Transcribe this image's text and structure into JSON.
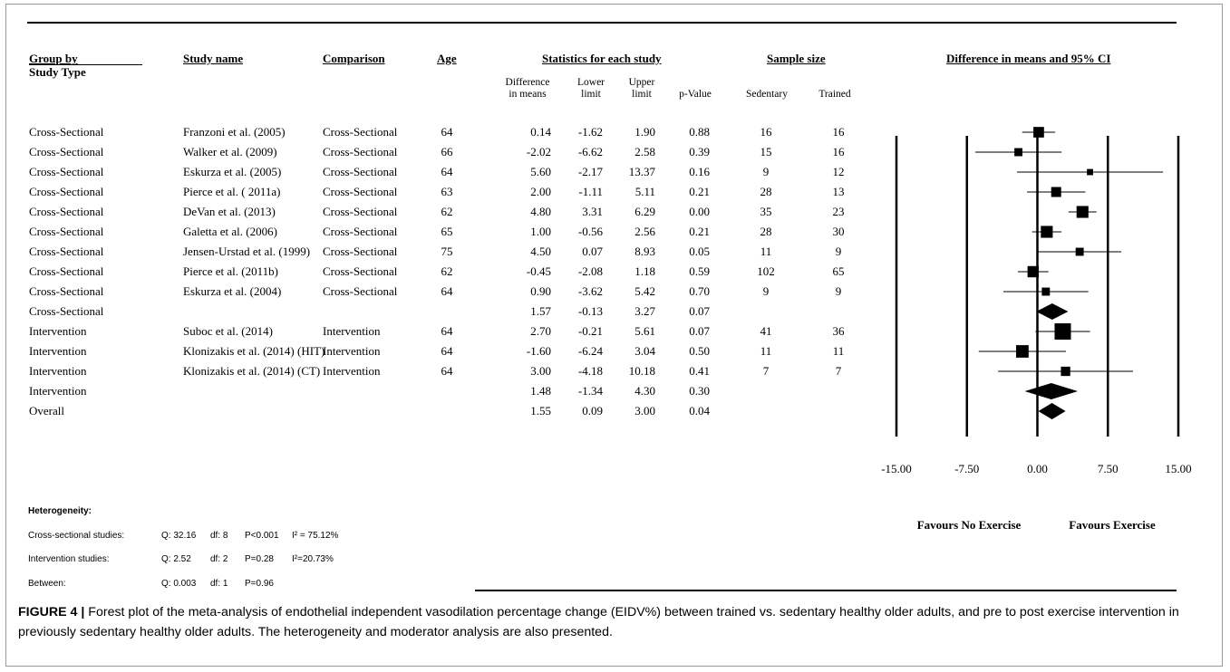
{
  "table": {
    "headers": {
      "group": "Group by",
      "group_sub": "Study Type",
      "study": "Study name",
      "comparison": "Comparison",
      "age": "Age",
      "stats": "Statistics for each study",
      "sample": "Sample size",
      "plot": "Difference in means and 95% CI"
    },
    "subheaders": {
      "diff": "Difference\nin means",
      "lower": "Lower\nlimit",
      "upper": "Upper\nlimit",
      "p": "p-Value",
      "sed": "Sedentary",
      "trained": "Trained"
    },
    "rows": [
      {
        "group": "Cross-Sectional",
        "study": "Franzoni et al. (2005)",
        "comparison": "Cross-Sectional",
        "age": "64",
        "diff": "0.14",
        "lower": "-1.62",
        "upper": "1.90",
        "p": "0.88",
        "sed": "16",
        "trained": "16"
      },
      {
        "group": "Cross-Sectional",
        "study": "Walker et al. (2009)",
        "comparison": "Cross-Sectional",
        "age": "66",
        "diff": "-2.02",
        "lower": "-6.62",
        "upper": "2.58",
        "p": "0.39",
        "sed": "15",
        "trained": "16"
      },
      {
        "group": "Cross-Sectional",
        "study": "Eskurza et al. (2005)",
        "comparison": "Cross-Sectional",
        "age": "64",
        "diff": "5.60",
        "lower": "-2.17",
        "upper": "13.37",
        "p": "0.16",
        "sed": "9",
        "trained": "12"
      },
      {
        "group": "Cross-Sectional",
        "study": "Pierce et al. ( 2011a)",
        "comparison": "Cross-Sectional",
        "age": "63",
        "diff": "2.00",
        "lower": "-1.11",
        "upper": "5.11",
        "p": "0.21",
        "sed": "28",
        "trained": "13"
      },
      {
        "group": "Cross-Sectional",
        "study": "DeVan et al. (2013)",
        "comparison": "Cross-Sectional",
        "age": "62",
        "diff": "4.80",
        "lower": "3.31",
        "upper": "6.29",
        "p": "0.00",
        "sed": "35",
        "trained": "23"
      },
      {
        "group": "Cross-Sectional",
        "study": "Galetta et al. (2006)",
        "comparison": "Cross-Sectional",
        "age": "65",
        "diff": "1.00",
        "lower": "-0.56",
        "upper": "2.56",
        "p": "0.21",
        "sed": "28",
        "trained": "30"
      },
      {
        "group": "Cross-Sectional",
        "study": "Jensen-Urstad et al. (1999)",
        "comparison": "Cross-Sectional",
        "age": "75",
        "diff": "4.50",
        "lower": "0.07",
        "upper": "8.93",
        "p": "0.05",
        "sed": "11",
        "trained": "9"
      },
      {
        "group": "Cross-Sectional",
        "study": "Pierce et al. (2011b)",
        "comparison": "Cross-Sectional",
        "age": "62",
        "diff": "-0.45",
        "lower": "-2.08",
        "upper": "1.18",
        "p": "0.59",
        "sed": "102",
        "trained": "65"
      },
      {
        "group": "Cross-Sectional",
        "study": "Eskurza et al. (2004)",
        "comparison": "Cross-Sectional",
        "age": "64",
        "diff": "0.90",
        "lower": "-3.62",
        "upper": "5.42",
        "p": "0.70",
        "sed": "9",
        "trained": "9"
      },
      {
        "group": "Cross-Sectional",
        "study": "",
        "comparison": "",
        "age": "",
        "diff": "1.57",
        "lower": "-0.13",
        "upper": "3.27",
        "p": "0.07",
        "sed": "",
        "trained": ""
      },
      {
        "group": "Intervention",
        "study": "Suboc et al. (2014)",
        "comparison": "Intervention",
        "age": "64",
        "diff": "2.70",
        "lower": "-0.21",
        "upper": "5.61",
        "p": "0.07",
        "sed": "41",
        "trained": "36"
      },
      {
        "group": "Intervention",
        "study": "Klonizakis et al. (2014) (HIT)",
        "comparison": "Intervention",
        "age": "64",
        "diff": "-1.60",
        "lower": "-6.24",
        "upper": "3.04",
        "p": "0.50",
        "sed": "11",
        "trained": "11"
      },
      {
        "group": "Intervention",
        "study": "Klonizakis et al. (2014) (CT)",
        "comparison": "Intervention",
        "age": "64",
        "diff": "3.00",
        "lower": "-4.18",
        "upper": "10.18",
        "p": "0.41",
        "sed": "7",
        "trained": "7"
      },
      {
        "group": "Intervention",
        "study": "",
        "comparison": "",
        "age": "",
        "diff": "1.48",
        "lower": "-1.34",
        "upper": "4.30",
        "p": "0.30",
        "sed": "",
        "trained": ""
      },
      {
        "group": "Overall",
        "study": "",
        "comparison": "",
        "age": "",
        "diff": "1.55",
        "lower": "0.09",
        "upper": "3.00",
        "p": "0.04",
        "sed": "",
        "trained": ""
      }
    ]
  },
  "heterogeneity": {
    "title": "Heterogeneity:",
    "rows": [
      {
        "label": "Cross-sectional studies:",
        "q": "Q: 32.16",
        "df": "df: 8",
        "p": "P<0.001",
        "i2": "I² = 75.12%"
      },
      {
        "label": "Intervention studies:",
        "q": "Q: 2.52",
        "df": "df: 2",
        "p": "P=0.28",
        "i2": "I²=20.73%"
      },
      {
        "label": "Between:",
        "q": "Q: 0.003",
        "df": "df: 1",
        "p": "P=0.96",
        "i2": ""
      }
    ]
  },
  "caption": {
    "label": "FIGURE 4 |",
    "text": " Forest plot of the meta-analysis of endothelial independent vasodilation percentage change (EIDV%) between trained vs. sedentary healthy older adults, and pre to post exercise intervention in previously sedentary healthy older adults. The heterogeneity and moderator analysis are also presented."
  },
  "chart_data": {
    "type": "forest",
    "title": "Difference in means and 95% CI",
    "xlim": [
      -15,
      15
    ],
    "ticks": [
      "-15.00",
      "-7.50",
      "0.00",
      "7.50",
      "15.00"
    ],
    "tick_values": [
      -15,
      -7.5,
      0,
      7.5,
      15
    ],
    "favours_left": "Favours No Exercise",
    "favours_right": "Favours Exercise",
    "points": [
      {
        "kind": "study",
        "est": 0.14,
        "lo": -1.62,
        "hi": 1.9,
        "weight": 0.55
      },
      {
        "kind": "study",
        "est": -2.02,
        "lo": -6.62,
        "hi": 2.58,
        "weight": 0.35
      },
      {
        "kind": "study",
        "est": 5.6,
        "lo": -2.17,
        "hi": 13.37,
        "weight": 0.2
      },
      {
        "kind": "study",
        "est": 2.0,
        "lo": -1.11,
        "hi": 5.11,
        "weight": 0.5
      },
      {
        "kind": "study",
        "est": 4.8,
        "lo": 3.31,
        "hi": 6.29,
        "weight": 0.65
      },
      {
        "kind": "study",
        "est": 1.0,
        "lo": -0.56,
        "hi": 2.56,
        "weight": 0.65
      },
      {
        "kind": "study",
        "est": 4.5,
        "lo": 0.07,
        "hi": 8.93,
        "weight": 0.35
      },
      {
        "kind": "study",
        "est": -0.45,
        "lo": -2.08,
        "hi": 1.18,
        "weight": 0.6
      },
      {
        "kind": "study",
        "est": 0.9,
        "lo": -3.62,
        "hi": 5.42,
        "weight": 0.35
      },
      {
        "kind": "summary",
        "est": 1.57,
        "lo": -0.13,
        "hi": 3.27
      },
      {
        "kind": "study",
        "est": 2.7,
        "lo": -0.21,
        "hi": 5.61,
        "weight": 1.0
      },
      {
        "kind": "study",
        "est": -1.6,
        "lo": -6.24,
        "hi": 3.04,
        "weight": 0.7
      },
      {
        "kind": "study",
        "est": 3.0,
        "lo": -4.18,
        "hi": 10.18,
        "weight": 0.45
      },
      {
        "kind": "summary",
        "est": 1.48,
        "lo": -1.34,
        "hi": 4.3
      },
      {
        "kind": "summary",
        "est": 1.55,
        "lo": 0.09,
        "hi": 3.0
      }
    ]
  }
}
